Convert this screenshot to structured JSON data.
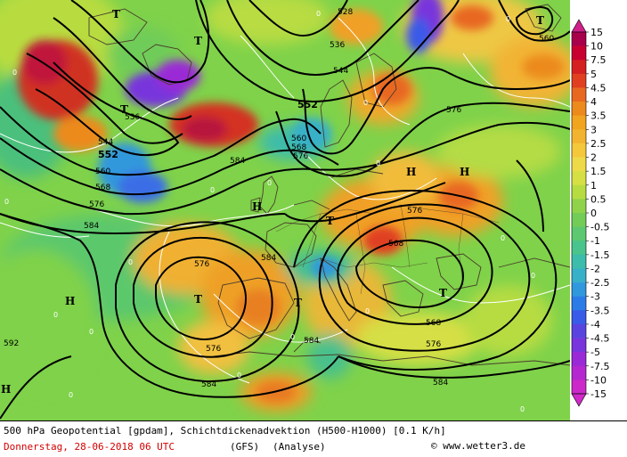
{
  "map": {
    "contour_labels": [
      "528",
      "536",
      "544",
      "552",
      "560",
      "568",
      "576",
      "584",
      "592"
    ],
    "zero_label": "0",
    "pressure_centers": {
      "high": "H",
      "low": "T"
    }
  },
  "legend": {
    "ticks": [
      "15",
      "10",
      "7.5",
      "5",
      "4.5",
      "4",
      "3.5",
      "3",
      "2.5",
      "2",
      "1.5",
      "1",
      "0.5",
      "0",
      "-0.5",
      "-1",
      "-1.5",
      "-2",
      "-2.5",
      "-3",
      "-3.5",
      "-4",
      "-4.5",
      "-5",
      "-7.5",
      "-10",
      "-15"
    ],
    "colors": [
      "#a8004b",
      "#c80030",
      "#d42020",
      "#e04020",
      "#e86820",
      "#ec8a1c",
      "#f0a420",
      "#f2b430",
      "#f5c83c",
      "#eeda48",
      "#d6df44",
      "#b6dc42",
      "#8fd34a",
      "#72cc56",
      "#5cc870",
      "#48c48c",
      "#3cbcaa",
      "#38b0c8",
      "#3098dc",
      "#2c7ce8",
      "#3a5ae8",
      "#5a44e0",
      "#7836dc",
      "#9a2ad6",
      "#b428d0",
      "#cc2ac8"
    ]
  },
  "footer": {
    "description": "500 hPa Geopotential [gpdam], Schichtdickenadvektion (H500-H1000) [0.1 K/h]",
    "date": "Donnerstag, 28-06-2018  06 UTC",
    "model": "(GFS)",
    "analysis": "(Analyse)",
    "copyright_symbol": "©",
    "credit": "www.wetter3.de"
  }
}
